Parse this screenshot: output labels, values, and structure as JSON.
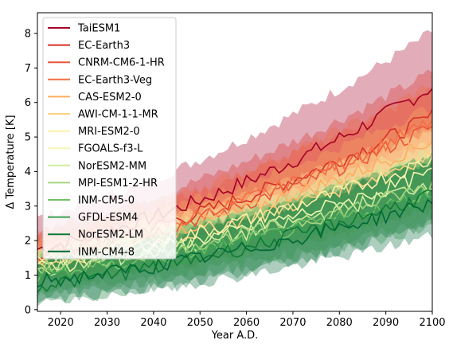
{
  "chart_data": {
    "type": "line",
    "title": "",
    "xlabel": "Year A.D.",
    "ylabel": "Δ Temperature [K]",
    "xlim": [
      2015,
      2100
    ],
    "ylim": [
      -0.05,
      8.6
    ],
    "xticks": [
      2020,
      2030,
      2040,
      2050,
      2060,
      2070,
      2080,
      2090,
      2100
    ],
    "yticks": [
      0,
      1,
      2,
      3,
      4,
      5,
      6,
      7,
      8
    ],
    "grid": false,
    "legend_position": "top-left",
    "series": [
      {
        "name": "TaiESM1",
        "color": "#a50026",
        "start": 1.75,
        "end": 6.45,
        "band": 1.6
      },
      {
        "name": "EC-Earth3",
        "color": "#d73027",
        "start": 1.6,
        "end": 5.6,
        "band": 1.3
      },
      {
        "name": "CNRM-CM6-1-HR",
        "color": "#e8553a",
        "start": 1.5,
        "end": 5.3,
        "band": 1.1
      },
      {
        "name": "EC-Earth3-Veg",
        "color": "#f46d43",
        "start": 1.55,
        "end": 5.45,
        "band": 1.1
      },
      {
        "name": "CAS-ESM2-0",
        "color": "#fdae61",
        "start": 1.45,
        "end": 4.9,
        "band": 1.0
      },
      {
        "name": "AWI-CM-1-1-MR",
        "color": "#fed384",
        "start": 1.3,
        "end": 4.5,
        "band": 0.9
      },
      {
        "name": "MRI-ESM2-0",
        "color": "#fff0a8",
        "start": 1.35,
        "end": 4.35,
        "band": 0.9
      },
      {
        "name": "FGOALS-f3-L",
        "color": "#f0f7b0",
        "start": 1.2,
        "end": 3.95,
        "band": 0.9
      },
      {
        "name": "NorESM2-MM",
        "color": "#d1ec9f",
        "start": 1.15,
        "end": 3.7,
        "band": 0.9
      },
      {
        "name": "MPI-ESM1-2-HR",
        "color": "#a8d781",
        "start": 1.2,
        "end": 3.6,
        "band": 0.9
      },
      {
        "name": "INM-CM5-0",
        "color": "#72c066",
        "start": 1.0,
        "end": 3.4,
        "band": 1.0
      },
      {
        "name": "GFDL-ESM4",
        "color": "#3ba153",
        "start": 0.95,
        "end": 3.3,
        "band": 1.1
      },
      {
        "name": "NorESM2-LM",
        "color": "#0f7a35",
        "start": 0.7,
        "end": 3.35,
        "band": 1.1
      },
      {
        "name": "INM-CM4-8",
        "color": "#006837",
        "start": 0.8,
        "end": 3.1,
        "band": 1.2
      }
    ]
  }
}
